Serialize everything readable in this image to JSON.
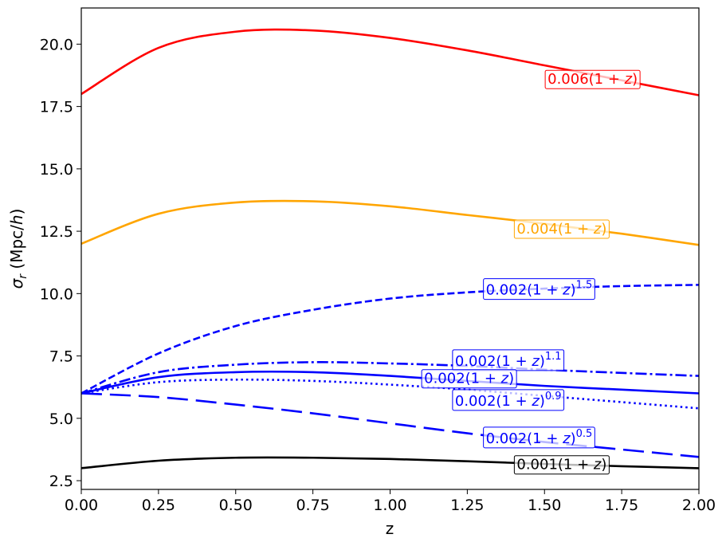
{
  "chart_data": {
    "type": "line",
    "xlabel": "z",
    "ylabel_symbol": "σ",
    "ylabel_sub": "r",
    "ylabel_unit_a": " (Mpc/",
    "ylabel_unit_h": "h",
    "ylabel_unit_b": ")",
    "xlim": [
      0,
      2
    ],
    "ylim": [
      2.15,
      21.45
    ],
    "xticks": [
      0,
      0.25,
      0.5,
      0.75,
      1.0,
      1.25,
      1.5,
      1.75,
      2.0
    ],
    "xtick_labels": [
      "0.00",
      "0.25",
      "0.50",
      "0.75",
      "1.00",
      "1.25",
      "1.50",
      "1.75",
      "2.00"
    ],
    "yticks": [
      2.5,
      5.0,
      7.5,
      10.0,
      12.5,
      15.0,
      17.5,
      20.0
    ],
    "ytick_labels": [
      "2.5",
      "5.0",
      "7.5",
      "10.0",
      "12.5",
      "15.0",
      "17.5",
      "20.0"
    ],
    "grid": false,
    "legend": "none",
    "x": [
      0,
      0.25,
      0.5,
      0.75,
      1.0,
      1.25,
      1.5,
      1.75,
      2.0
    ],
    "series": [
      {
        "id": "s006",
        "color": "#ff0000",
        "dash": "solid",
        "values": [
          18.0,
          19.85,
          20.5,
          20.55,
          20.25,
          19.75,
          19.15,
          18.55,
          17.95
        ],
        "label": {
          "coef": "0.006",
          "base": "(1 + ",
          "var": "z",
          "close": ")",
          "exp": "",
          "x": 1.51,
          "y": 18.6
        }
      },
      {
        "id": "s004",
        "color": "#ffa500",
        "dash": "solid",
        "values": [
          12.0,
          13.2,
          13.65,
          13.7,
          13.5,
          13.15,
          12.8,
          12.4,
          11.95
        ],
        "label": {
          "coef": "0.004",
          "base": "(1 + ",
          "var": "z",
          "close": ")",
          "exp": "",
          "x": 1.41,
          "y": 12.6
        }
      },
      {
        "id": "s002_15",
        "color": "#0000ff",
        "dash": "dashed",
        "values": [
          6.0,
          7.6,
          8.7,
          9.35,
          9.8,
          10.05,
          10.2,
          10.3,
          10.35
        ],
        "label": {
          "coef": "0.002",
          "base": "(1 + ",
          "var": "z",
          "close": ")",
          "exp": "1.5",
          "x": 1.31,
          "y": 10.15
        }
      },
      {
        "id": "s002_11",
        "color": "#0000ff",
        "dash": "dashdot",
        "values": [
          6.0,
          6.85,
          7.15,
          7.25,
          7.2,
          7.1,
          6.95,
          6.82,
          6.7
        ],
        "label": {
          "coef": "0.002",
          "base": "(1 + ",
          "var": "z",
          "close": ")",
          "exp": "1.1",
          "x": 1.21,
          "y": 7.3
        }
      },
      {
        "id": "s002",
        "color": "#0000ff",
        "dash": "solid",
        "values": [
          6.0,
          6.65,
          6.85,
          6.85,
          6.7,
          6.5,
          6.3,
          6.15,
          6.0
        ],
        "label": {
          "coef": "0.002",
          "base": "(1 + ",
          "var": "z",
          "close": ")",
          "exp": "",
          "x": 1.11,
          "y": 6.6
        }
      },
      {
        "id": "s002_09",
        "color": "#0000ff",
        "dash": "dotted",
        "values": [
          6.0,
          6.45,
          6.55,
          6.5,
          6.35,
          6.15,
          5.9,
          5.65,
          5.4
        ],
        "label": {
          "coef": "0.002",
          "base": "(1 + ",
          "var": "z",
          "close": ")",
          "exp": "0.9",
          "x": 1.21,
          "y": 5.7
        }
      },
      {
        "id": "s002_05",
        "color": "#0000ff",
        "dash": "longdash",
        "values": [
          6.0,
          5.85,
          5.55,
          5.2,
          4.8,
          4.4,
          4.05,
          3.75,
          3.45
        ],
        "label": {
          "coef": "0.002",
          "base": "(1 + ",
          "var": "z",
          "close": ")",
          "exp": "0.5",
          "x": 1.31,
          "y": 4.2
        }
      },
      {
        "id": "s001",
        "color": "#000000",
        "dash": "solid",
        "values": [
          3.0,
          3.3,
          3.42,
          3.42,
          3.37,
          3.28,
          3.17,
          3.08,
          3.0
        ],
        "label": {
          "coef": "0.001",
          "base": "(1 + ",
          "var": "z",
          "close": ")",
          "exp": "",
          "x": 1.41,
          "y": 3.15
        }
      }
    ]
  }
}
